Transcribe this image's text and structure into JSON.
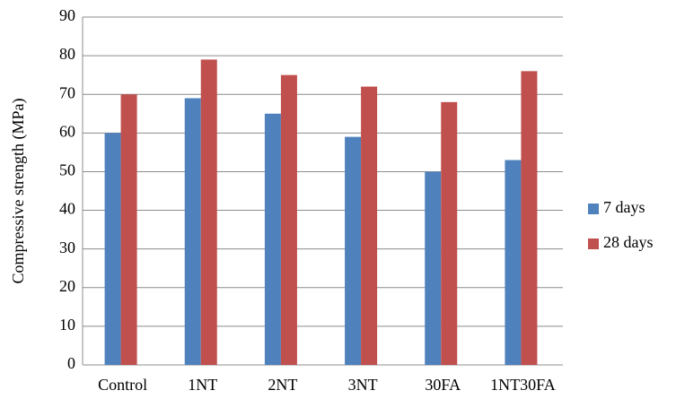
{
  "chart_data": {
    "type": "bar",
    "y_label": "Compressive strength (MPa)",
    "categories": [
      "Control",
      "1NT",
      "2NT",
      "3NT",
      "30FA",
      "1NT30FA"
    ],
    "series": [
      {
        "name": "7 days",
        "color": "#4f81bd",
        "values": [
          60,
          69,
          65,
          59,
          50,
          53
        ]
      },
      {
        "name": "28 days",
        "color": "#c0504d",
        "values": [
          70,
          79,
          75,
          72,
          68,
          76
        ]
      }
    ],
    "ylim": [
      0,
      90
    ],
    "yticks": [
      0,
      10,
      20,
      30,
      40,
      50,
      60,
      70,
      80,
      90
    ],
    "grid": true,
    "legend": "right"
  }
}
